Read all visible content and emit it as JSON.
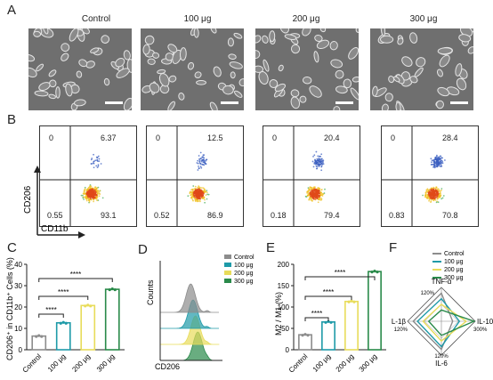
{
  "panels": {
    "A": "A",
    "B": "B",
    "C": "C",
    "D": "D",
    "E": "E",
    "F": "F"
  },
  "groups": [
    "Control",
    "100 μg",
    "200 μg",
    "300 μg"
  ],
  "flow": {
    "xlabel": "CD11b",
    "ylabel": "CD206",
    "quadrants": [
      {
        "ul": "0",
        "ur": "6.37",
        "ll": "0.55",
        "lr": "93.1"
      },
      {
        "ul": "0",
        "ur": "12.5",
        "ll": "0.52",
        "lr": "86.9"
      },
      {
        "ul": "0",
        "ur": "20.4",
        "ll": "0.18",
        "lr": "79.4"
      },
      {
        "ul": "0",
        "ur": "28.4",
        "ll": "0.83",
        "lr": "70.8"
      }
    ]
  },
  "colors": {
    "control": "#8c8c8c",
    "g100": "#1e9aa8",
    "g200": "#e8dc5a",
    "g300": "#2a8a4a"
  },
  "chart_data": [
    {
      "type": "bar",
      "panel": "C",
      "categories": [
        "Control",
        "100 μg",
        "200 μg",
        "300 μg"
      ],
      "values": [
        6.4,
        12.6,
        20.7,
        28.3
      ],
      "ylabel": "CD206⁺ in CD11b⁺ Cells (%)",
      "ylim": [
        0,
        40
      ],
      "yticks": [
        "0",
        "10",
        "20",
        "30",
        "40"
      ],
      "significance": "****"
    },
    {
      "type": "area",
      "panel": "D",
      "series": [
        {
          "name": "Control"
        },
        {
          "name": "100 μg"
        },
        {
          "name": "200 μg"
        },
        {
          "name": "300 μg"
        }
      ],
      "xlabel": "CD206",
      "ylabel": "Counts"
    },
    {
      "type": "bar",
      "panel": "E",
      "categories": [
        "Control",
        "100 μg",
        "200 μg",
        "300 μg"
      ],
      "values": [
        35,
        65,
        113,
        183
      ],
      "ylabel": "M2 / M1 (%)",
      "ylim": [
        0,
        200
      ],
      "yticks": [
        "0",
        "50",
        "100",
        "150",
        "200"
      ],
      "significance": "****"
    },
    {
      "type": "radar",
      "panel": "F",
      "axes": [
        "TNF-α",
        "IL-10",
        "IL-6",
        "IL-1β"
      ],
      "axis_max_labels": [
        "120%",
        "300%",
        "120%",
        "120%"
      ],
      "series": [
        {
          "name": "Control",
          "values": [
            100,
            100,
            100,
            100
          ]
        },
        {
          "name": "100 μg",
          "values": [
            80,
            160,
            90,
            85
          ]
        },
        {
          "name": "200 μg",
          "values": [
            60,
            220,
            70,
            65
          ]
        },
        {
          "name": "300 μg",
          "values": [
            40,
            290,
            50,
            45
          ]
        }
      ],
      "max": [
        120,
        300,
        120,
        120
      ]
    }
  ]
}
